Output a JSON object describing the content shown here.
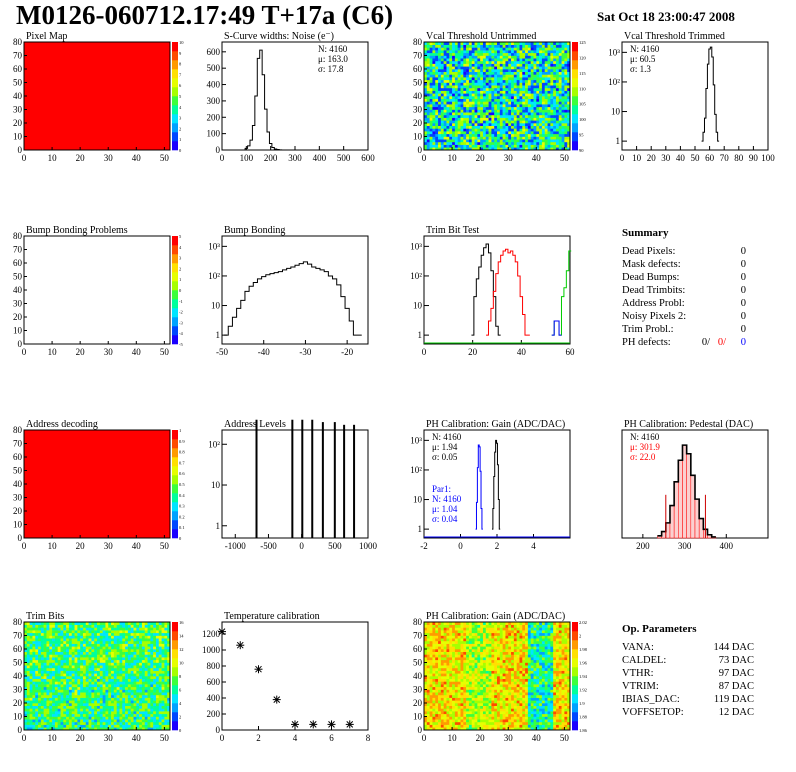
{
  "header": {
    "title": "M0126-060712.17:49 T+17a (C6)",
    "date": "Sat Oct 18 23:00:47 2008"
  },
  "colors": {
    "red": "#ff0000",
    "blue": "#0000ff",
    "green": "#00cc00",
    "dark_red": "#cc0000",
    "black": "#000000"
  },
  "chart_data": [
    {
      "id": "pixel-map",
      "type": "heatmap",
      "title": "Pixel Map",
      "xlim": [
        0,
        52
      ],
      "ylim": [
        0,
        80
      ],
      "xticks": [
        "0",
        "10",
        "20",
        "30",
        "40",
        "50"
      ],
      "yticks": [
        "0",
        "10",
        "20",
        "30",
        "40",
        "50",
        "60",
        "70",
        "80"
      ],
      "fill": "uniform-max",
      "colorbar": [
        "0",
        "1",
        "2",
        "3",
        "4",
        "5",
        "6",
        "7",
        "8",
        "9",
        "10"
      ]
    },
    {
      "id": "scurve-widths",
      "type": "bar",
      "title": "S-Curve widths: Noise (e⁻)",
      "xlim": [
        0,
        600
      ],
      "ylim": [
        0,
        660
      ],
      "xticks": [
        "0",
        "100",
        "200",
        "300",
        "400",
        "500",
        "600"
      ],
      "yticks": [
        "0",
        "100",
        "200",
        "300",
        "400",
        "500",
        "600"
      ],
      "stats": [
        "N: 4160",
        "μ: 163.0",
        "σ: 17.8"
      ],
      "x": [
        90,
        100,
        110,
        120,
        130,
        140,
        150,
        160,
        170,
        180,
        190,
        200,
        210,
        220,
        230,
        240,
        250
      ],
      "y": [
        0,
        10,
        25,
        60,
        150,
        330,
        560,
        610,
        460,
        250,
        110,
        40,
        15,
        6,
        3,
        1,
        0
      ]
    },
    {
      "id": "vcal-untrimmed",
      "type": "heatmap",
      "title": "Vcal Threshold Untrimmed",
      "xlim": [
        0,
        52
      ],
      "ylim": [
        0,
        80
      ],
      "xticks": [
        "0",
        "10",
        "20",
        "30",
        "40",
        "50"
      ],
      "yticks": [
        "0",
        "10",
        "20",
        "30",
        "40",
        "50",
        "60",
        "70",
        "80"
      ],
      "fill": "noise-mid",
      "colorbar": [
        "90",
        "95",
        "100",
        "105",
        "110",
        "115",
        "120",
        "125"
      ]
    },
    {
      "id": "vcal-trimmed",
      "type": "bar",
      "title": "Vcal Threshold Trimmed",
      "xlim": [
        0,
        100
      ],
      "ylog": true,
      "yticks": [
        "1",
        "10",
        "10²",
        "10³"
      ],
      "xticks": [
        "0",
        "10",
        "20",
        "30",
        "40",
        "50",
        "60",
        "70",
        "80",
        "90",
        "100"
      ],
      "stats": [
        "N: 4160",
        "μ: 60.5",
        "σ: 1.3"
      ],
      "x": [
        55,
        56,
        57,
        58,
        59,
        60,
        61,
        62,
        63,
        64,
        65,
        66
      ],
      "y": [
        1,
        2,
        6,
        60,
        400,
        1300,
        1500,
        700,
        80,
        8,
        2,
        1
      ]
    },
    {
      "id": "bump-problems",
      "type": "heatmap",
      "title": "Bump Bonding Problems",
      "xlim": [
        0,
        52
      ],
      "ylim": [
        0,
        80
      ],
      "xticks": [
        "0",
        "10",
        "20",
        "30",
        "40",
        "50"
      ],
      "yticks": [
        "0",
        "10",
        "20",
        "30",
        "40",
        "50",
        "60",
        "70",
        "80"
      ],
      "fill": "empty",
      "colorbar": [
        "-5",
        "-4",
        "-3",
        "-2",
        "-1",
        "0",
        "1",
        "2",
        "3",
        "4",
        "5"
      ]
    },
    {
      "id": "bump-bonding",
      "type": "bar",
      "title": "Bump Bonding",
      "xlim": [
        -50,
        -15
      ],
      "ylog": true,
      "yticks": [
        "1",
        "10",
        "10²",
        "10³"
      ],
      "xticks": [
        "-50",
        "-40",
        "-30",
        "-20"
      ],
      "x": [
        -49,
        -48,
        -47,
        -46,
        -45,
        -44,
        -43,
        -42,
        -41,
        -40,
        -39,
        -38,
        -37,
        -36,
        -35,
        -34,
        -33,
        -32,
        -31,
        -30,
        -29,
        -28,
        -27,
        -26,
        -25,
        -24,
        -23,
        -22,
        -21,
        -20,
        -19,
        -18,
        -17
      ],
      "y": [
        1,
        2,
        4,
        8,
        15,
        30,
        45,
        60,
        80,
        95,
        110,
        120,
        130,
        140,
        160,
        180,
        200,
        230,
        260,
        300,
        250,
        200,
        180,
        160,
        140,
        100,
        80,
        50,
        20,
        8,
        3,
        1,
        1
      ]
    },
    {
      "id": "trim-bit-test",
      "type": "line",
      "title": "Trim Bit Test",
      "xlim": [
        0,
        60
      ],
      "ylog": true,
      "yticks": [
        "1",
        "10",
        "10²",
        "10³"
      ],
      "xticks": [
        "0",
        "20",
        "40",
        "60"
      ],
      "series": [
        {
          "x": [
            20,
            21,
            22,
            23,
            24,
            25,
            26,
            27,
            28,
            29,
            30,
            31
          ],
          "y": [
            1,
            20,
            80,
            200,
            500,
            900,
            1200,
            600,
            150,
            20,
            2,
            1
          ]
        },
        {
          "x": [
            26,
            27,
            28,
            29,
            30,
            31,
            32,
            33,
            34,
            35,
            36,
            37,
            38,
            39,
            40,
            41,
            42,
            43
          ],
          "y": [
            1,
            3,
            8,
            30,
            120,
            300,
            500,
            700,
            800,
            600,
            700,
            500,
            300,
            100,
            20,
            5,
            1,
            1
          ]
        },
        {
          "x": [
            53,
            54,
            55,
            56,
            57,
            58,
            59,
            60
          ],
          "y": [
            1,
            3,
            3,
            1,
            20,
            40,
            150,
            700
          ]
        },
        {
          "x": [
            53,
            54,
            55,
            56
          ],
          "y": [
            1,
            3,
            3,
            1
          ]
        }
      ]
    },
    {
      "summary": true,
      "title": "Summary",
      "rows": [
        {
          "label": "Dead Pixels:",
          "value": "0"
        },
        {
          "label": "Mask defects:",
          "value": "0"
        },
        {
          "label": "Dead Bumps:",
          "value": "0"
        },
        {
          "label": "Dead Trimbits:",
          "value": "0"
        },
        {
          "label": "Address Probl:",
          "value": "0"
        },
        {
          "label": "Noisy Pixels 2:",
          "value": "0"
        },
        {
          "label": "Trim Probl.:",
          "value": "0"
        }
      ],
      "ph_label": "PH defects:",
      "ph_values": [
        "0/",
        "0/",
        "0"
      ]
    },
    {
      "id": "address-decoding",
      "type": "heatmap",
      "title": "Address decoding",
      "xlim": [
        0,
        52
      ],
      "ylim": [
        0,
        80
      ],
      "xticks": [
        "0",
        "10",
        "20",
        "30",
        "40",
        "50"
      ],
      "yticks": [
        "0",
        "10",
        "20",
        "30",
        "40",
        "50",
        "60",
        "70",
        "80"
      ],
      "fill": "uniform-max",
      "colorbar": [
        "0",
        "0.1",
        "0.2",
        "0.3",
        "0.4",
        "0.5",
        "0.6",
        "0.7",
        "0.8",
        "0.9",
        "1"
      ]
    },
    {
      "id": "address-levels",
      "type": "bar",
      "title": "Address Levels",
      "xlim": [
        -1200,
        1000
      ],
      "ylog": true,
      "yticks": [
        "1",
        "10",
        "10²"
      ],
      "xticks": [
        "-1000",
        "-500",
        "0",
        "500",
        "1000"
      ],
      "x": [
        -680,
        -140,
        10,
        160,
        320,
        500,
        640,
        790
      ],
      "y": [
        400,
        400,
        400,
        400,
        350,
        350,
        300,
        300
      ]
    },
    {
      "id": "ph-gain",
      "type": "bar",
      "title": "PH Calibration: Gain (ADC/DAC)",
      "xlim": [
        -2,
        6
      ],
      "ylog": true,
      "yticks": [
        "1",
        "10",
        "10²",
        "10³"
      ],
      "xticks": [
        "-2",
        "0",
        "2",
        "4"
      ],
      "stats": [
        "N: 4160",
        "μ: 1.94",
        "σ: 0.05"
      ],
      "stats2": [
        "Par1:",
        "N: 4160",
        "μ: 1.04",
        "σ: 0.04"
      ],
      "series": [
        {
          "x": [
            1.75,
            1.8,
            1.85,
            1.9,
            1.95,
            2.0,
            2.05,
            2.1,
            2.15
          ],
          "y": [
            1,
            5,
            60,
            400,
            1000,
            800,
            150,
            10,
            1
          ]
        },
        {
          "x": [
            0.85,
            0.9,
            0.95,
            1.0,
            1.05,
            1.1,
            1.15,
            1.2
          ],
          "y": [
            1,
            8,
            120,
            700,
            600,
            90,
            5,
            1
          ]
        }
      ]
    },
    {
      "id": "ph-pedestal",
      "type": "bar",
      "title": "PH Calibration: Pedestal (DAC)",
      "xlim": [
        150,
        500
      ],
      "ylim": [
        0,
        100
      ],
      "xticks": [
        "200",
        "300",
        "400"
      ],
      "stats": [
        "N: 4160",
        "μ: 301.9",
        "σ: 22.0"
      ],
      "x": [
        240,
        250,
        260,
        270,
        280,
        290,
        300,
        310,
        320,
        330,
        340,
        350,
        360,
        370
      ],
      "y": [
        2,
        6,
        14,
        30,
        52,
        72,
        86,
        78,
        58,
        36,
        18,
        8,
        3,
        1
      ]
    },
    {
      "id": "trim-bits",
      "type": "heatmap",
      "title": "Trim Bits",
      "xlim": [
        0,
        52
      ],
      "ylim": [
        0,
        80
      ],
      "xticks": [
        "0",
        "10",
        "20",
        "30",
        "40",
        "50"
      ],
      "yticks": [
        "0",
        "10",
        "20",
        "30",
        "40",
        "50",
        "60",
        "70",
        "80"
      ],
      "fill": "noise-cool",
      "colorbar": [
        "0",
        "2",
        "4",
        "6",
        "8",
        "10",
        "12",
        "14",
        "16"
      ]
    },
    {
      "id": "temperature-calibration",
      "type": "scatter",
      "title": "Temperature calibration",
      "xlim": [
        0,
        8
      ],
      "ylim": [
        0,
        1350
      ],
      "xticks": [
        "0",
        "2",
        "4",
        "6",
        "8"
      ],
      "yticks": [
        "0",
        "200",
        "400",
        "600",
        "800",
        "1000",
        "1200"
      ],
      "x": [
        0,
        1,
        2,
        3,
        4,
        5,
        6,
        7
      ],
      "y": [
        1230,
        1060,
        760,
        380,
        70,
        70,
        70,
        70
      ]
    },
    {
      "id": "ph-gain-map",
      "type": "heatmap",
      "title": "PH Calibration: Gain (ADC/DAC)",
      "xlim": [
        0,
        52
      ],
      "ylim": [
        0,
        80
      ],
      "xticks": [
        "0",
        "10",
        "20",
        "30",
        "40",
        "50"
      ],
      "yticks": [
        "0",
        "10",
        "20",
        "30",
        "40",
        "50",
        "60",
        "70",
        "80"
      ],
      "fill": "noise-warm",
      "colorbar": [
        "1.86",
        "1.88",
        "1.9",
        "1.92",
        "1.94",
        "1.96",
        "1.98",
        "2",
        "2.02"
      ]
    },
    {
      "params": true,
      "title": "Op. Parameters",
      "rows": [
        {
          "label": "VANA:",
          "value": "144 DAC"
        },
        {
          "label": "CALDEL:",
          "value": "73 DAC"
        },
        {
          "label": "VTHR:",
          "value": "97 DAC"
        },
        {
          "label": "VTRIM:",
          "value": "87 DAC"
        },
        {
          "label": "IBIAS_DAC:",
          "value": "119 DAC"
        },
        {
          "label": "VOFFSETOP:",
          "value": "12 DAC"
        }
      ]
    }
  ]
}
